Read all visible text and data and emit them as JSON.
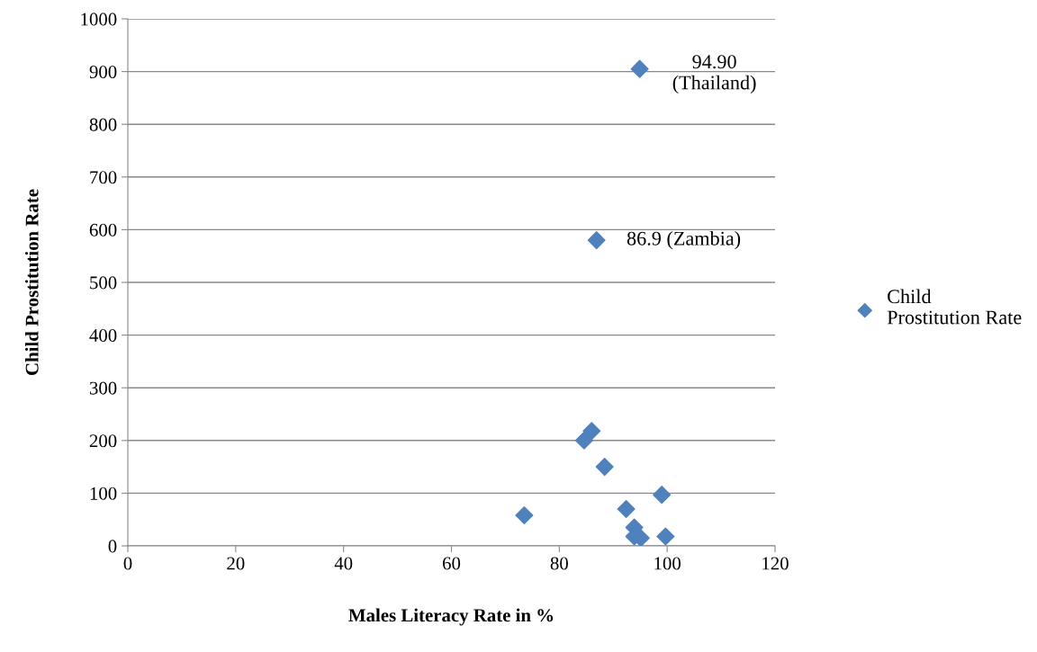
{
  "chart_data": {
    "type": "scatter",
    "xlabel": "Males Literacy Rate in %",
    "ylabel": "Child Prostitution Rate",
    "x": [
      94.9,
      86.9,
      86.0,
      84.6,
      88.4,
      99.0,
      73.5,
      92.4,
      93.9,
      93.9,
      95.1,
      99.7
    ],
    "series": [
      {
        "name": "Child Prostitution Rate",
        "color": "#4f81bd",
        "values": [
          905,
          580,
          218,
          200,
          150,
          97,
          58,
          70,
          35,
          18,
          15,
          18
        ]
      }
    ],
    "xlim": [
      0,
      120
    ],
    "xticks": [
      0,
      20,
      40,
      60,
      80,
      100,
      120
    ],
    "ylim": [
      0,
      1000
    ],
    "yticks": [
      0,
      100,
      200,
      300,
      400,
      500,
      600,
      700,
      800,
      900,
      1000
    ],
    "grid": "y",
    "legend": "right",
    "marker": "diamond",
    "annotations": [
      {
        "text": "94.90\n(Thailand)",
        "x": 94.9,
        "y": 905
      },
      {
        "text": "86.9 (Zambia)",
        "x": 86.9,
        "y": 580
      }
    ]
  }
}
